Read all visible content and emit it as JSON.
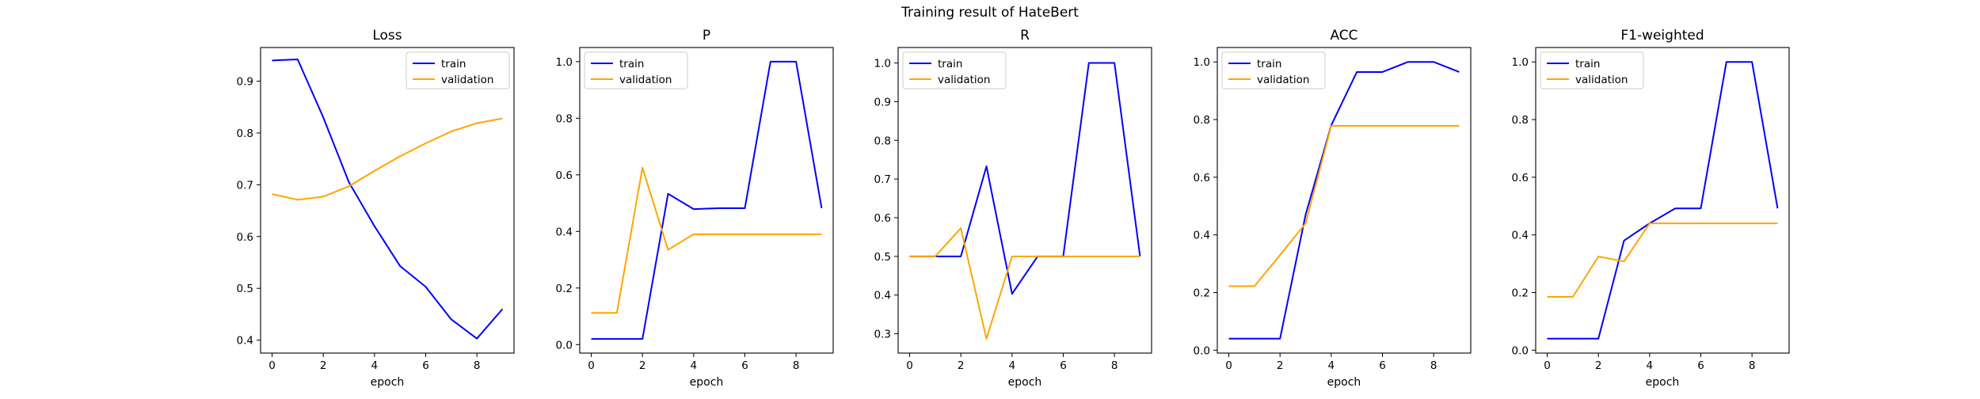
{
  "figure_title": "Training result of HateBert",
  "chart_data": [
    {
      "type": "line",
      "title": "Loss",
      "xlabel": "epoch",
      "ylabel": "",
      "x": [
        0,
        1,
        2,
        3,
        4,
        5,
        6,
        7,
        8,
        9
      ],
      "xticks": [
        0,
        2,
        4,
        6,
        8
      ],
      "xlim": [
        -0.45,
        9.45
      ],
      "ylim": [
        0.375,
        0.965
      ],
      "yticks": [
        0.4,
        0.5,
        0.6,
        0.7,
        0.8,
        0.9
      ],
      "ytick_labels": [
        "0.4",
        "0.5",
        "0.6",
        "0.7",
        "0.8",
        "0.9"
      ],
      "legend_position": "upper right",
      "grid": false,
      "series": [
        {
          "name": "train",
          "color": "#0000ff",
          "values": [
            0.94,
            0.942,
            0.83,
            0.705,
            0.62,
            0.543,
            0.503,
            0.44,
            0.403,
            0.46
          ]
        },
        {
          "name": "validation",
          "color": "#ffa500",
          "values": [
            0.682,
            0.671,
            0.677,
            0.697,
            0.727,
            0.755,
            0.78,
            0.803,
            0.819,
            0.828
          ]
        }
      ]
    },
    {
      "type": "line",
      "title": "P",
      "xlabel": "epoch",
      "ylabel": "",
      "x": [
        0,
        1,
        2,
        3,
        4,
        5,
        6,
        7,
        8,
        9
      ],
      "xticks": [
        0,
        2,
        4,
        6,
        8
      ],
      "xlim": [
        -0.45,
        9.45
      ],
      "ylim": [
        -0.03,
        1.05
      ],
      "yticks": [
        0.0,
        0.2,
        0.4,
        0.6,
        0.8,
        1.0
      ],
      "ytick_labels": [
        "0.0",
        "0.2",
        "0.4",
        "0.6",
        "0.8",
        "1.0"
      ],
      "legend_position": "upper left",
      "grid": false,
      "series": [
        {
          "name": "train",
          "color": "#0000ff",
          "values": [
            0.02,
            0.02,
            0.02,
            0.533,
            0.479,
            0.482,
            0.482,
            1.0,
            1.0,
            0.482
          ]
        },
        {
          "name": "validation",
          "color": "#ffa500",
          "values": [
            0.112,
            0.112,
            0.625,
            0.335,
            0.39,
            0.39,
            0.39,
            0.39,
            0.39,
            0.39
          ]
        }
      ]
    },
    {
      "type": "line",
      "title": "R",
      "xlabel": "epoch",
      "ylabel": "",
      "x": [
        0,
        1,
        2,
        3,
        4,
        5,
        6,
        7,
        8,
        9
      ],
      "xticks": [
        0,
        2,
        4,
        6,
        8
      ],
      "xlim": [
        -0.45,
        9.45
      ],
      "ylim": [
        0.25,
        1.04
      ],
      "yticks": [
        0.3,
        0.4,
        0.5,
        0.6,
        0.7,
        0.8,
        0.9,
        1.0
      ],
      "ytick_labels": [
        "0.3",
        "0.4",
        "0.5",
        "0.6",
        "0.7",
        "0.8",
        "0.9",
        "1.0"
      ],
      "legend_position": "upper left",
      "grid": false,
      "series": [
        {
          "name": "train",
          "color": "#0000ff",
          "values": [
            0.5,
            0.5,
            0.5,
            0.733,
            0.403,
            0.5,
            0.5,
            1.0,
            1.0,
            0.5
          ]
        },
        {
          "name": "validation",
          "color": "#ffa500",
          "values": [
            0.5,
            0.5,
            0.573,
            0.287,
            0.5,
            0.5,
            0.5,
            0.5,
            0.5,
            0.5
          ]
        }
      ]
    },
    {
      "type": "line",
      "title": "ACC",
      "xlabel": "epoch",
      "ylabel": "",
      "x": [
        0,
        1,
        2,
        3,
        4,
        5,
        6,
        7,
        8,
        9
      ],
      "xticks": [
        0,
        2,
        4,
        6,
        8
      ],
      "xlim": [
        -0.45,
        9.45
      ],
      "ylim": [
        -0.01,
        1.05
      ],
      "yticks": [
        0.0,
        0.2,
        0.4,
        0.6,
        0.8,
        1.0
      ],
      "ytick_labels": [
        "0.0",
        "0.2",
        "0.4",
        "0.6",
        "0.8",
        "1.0"
      ],
      "legend_position": "upper left",
      "grid": false,
      "series": [
        {
          "name": "train",
          "color": "#0000ff",
          "values": [
            0.04,
            0.04,
            0.04,
            0.47,
            0.78,
            0.965,
            0.965,
            1.0,
            1.0,
            0.965
          ]
        },
        {
          "name": "validation",
          "color": "#ffa500",
          "values": [
            0.222,
            0.222,
            0.33,
            0.44,
            0.778,
            0.778,
            0.778,
            0.778,
            0.778,
            0.778
          ]
        }
      ]
    },
    {
      "type": "line",
      "title": "F1-weighted",
      "xlabel": "epoch",
      "ylabel": "",
      "x": [
        0,
        1,
        2,
        3,
        4,
        5,
        6,
        7,
        8,
        9
      ],
      "xticks": [
        0,
        2,
        4,
        6,
        8
      ],
      "xlim": [
        -0.45,
        9.45
      ],
      "ylim": [
        -0.01,
        1.05
      ],
      "yticks": [
        0.0,
        0.2,
        0.4,
        0.6,
        0.8,
        1.0
      ],
      "ytick_labels": [
        "0.0",
        "0.2",
        "0.4",
        "0.6",
        "0.8",
        "1.0"
      ],
      "legend_position": "upper left",
      "grid": false,
      "series": [
        {
          "name": "train",
          "color": "#0000ff",
          "values": [
            0.04,
            0.04,
            0.04,
            0.38,
            0.44,
            0.492,
            0.492,
            1.0,
            1.0,
            0.492
          ]
        },
        {
          "name": "validation",
          "color": "#ffa500",
          "values": [
            0.185,
            0.185,
            0.325,
            0.308,
            0.44,
            0.44,
            0.44,
            0.44,
            0.44,
            0.44
          ]
        }
      ]
    }
  ]
}
